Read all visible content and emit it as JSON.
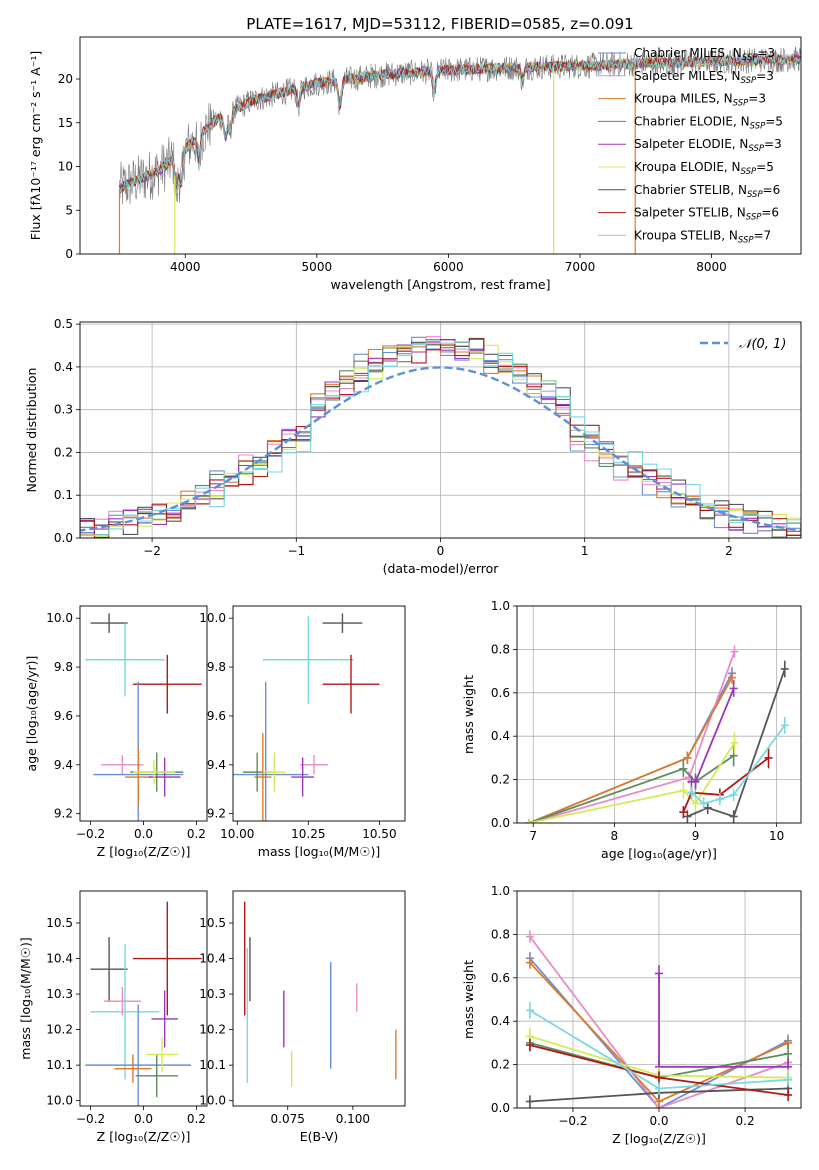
{
  "figure": {
    "title": "PLATE=1617, MJD=53112, FIBERID=0585, z=0.091"
  },
  "models": [
    {
      "name": "Chabrier MILES",
      "nssp": "3",
      "color": "#6a8fd9"
    },
    {
      "name": "Salpeter MILES",
      "nssp": "3",
      "color": "#e88cc8"
    },
    {
      "name": "Kroupa MILES",
      "nssp": "3",
      "color": "#e07a2a"
    },
    {
      "name": "Chabrier ELODIE",
      "nssp": "5",
      "color": "#5f8a5f"
    },
    {
      "name": "Salpeter ELODIE",
      "nssp": "3",
      "color": "#9b37b8"
    },
    {
      "name": "Kroupa ELODIE",
      "nssp": "5",
      "color": "#d4ea5a"
    },
    {
      "name": "Chabrier STELIB",
      "nssp": "6",
      "color": "#555555"
    },
    {
      "name": "Salpeter STELIB",
      "nssp": "6",
      "color": "#b01818"
    },
    {
      "name": "Kroupa STELIB",
      "nssp": "7",
      "color": "#7ad8e0"
    }
  ],
  "chart_data": [
    {
      "id": "spectrum",
      "type": "line",
      "xlabel": "wavelength [Angstrom, rest frame]",
      "ylabel": "Flux [fλ10⁻¹⁷ erg cm⁻² s⁻¹ A⁻¹]",
      "xlim": [
        3200,
        8680
      ],
      "ylim": [
        0,
        24.8
      ],
      "xticks": [
        4000,
        5000,
        6000,
        7000,
        8000
      ],
      "yticks": [
        0,
        5,
        10,
        15,
        20
      ],
      "legend": "upper right",
      "continuum": {
        "x": [
          3500,
          3800,
          4000,
          4200,
          4500,
          5000,
          5500,
          6000,
          6500,
          7000,
          7500,
          8000,
          8500,
          8680
        ],
        "y": [
          7.5,
          9.5,
          12,
          15,
          17.5,
          19.5,
          20.5,
          21,
          21.3,
          21.5,
          21.8,
          22,
          22.2,
          22.3
        ]
      },
      "absorption_features": [
        {
          "x": 3934,
          "depth": 4
        },
        {
          "x": 3969,
          "depth": 3.5
        },
        {
          "x": 4102,
          "depth": 3
        },
        {
          "x": 4305,
          "depth": 2.5
        },
        {
          "x": 4341,
          "depth": 2
        },
        {
          "x": 4861,
          "depth": 2
        },
        {
          "x": 5175,
          "depth": 3
        },
        {
          "x": 5892,
          "depth": 2.5
        },
        {
          "x": 6563,
          "depth": 1.5
        }
      ],
      "spikes": [
        {
          "x": 3500,
          "series": "Kroupa MILES"
        },
        {
          "x": 3920,
          "series": "Kroupa ELODIE"
        },
        {
          "x": 6800,
          "series": "Kroupa ELODIE"
        },
        {
          "x": 7420,
          "series": "Kroupa MILES"
        }
      ]
    },
    {
      "id": "residual_histogram",
      "type": "histogram",
      "xlabel": "(data-model)/error",
      "ylabel": "Normed distribution",
      "xlim": [
        -2.5,
        2.5
      ],
      "ylim": [
        0,
        0.505
      ],
      "xticks": [
        -2,
        -1,
        0,
        1,
        2
      ],
      "yticks": [
        0.0,
        0.1,
        0.2,
        0.3,
        0.4,
        0.5
      ],
      "reference_label": "𝒩(0, 1)",
      "reference_color": "#5b8fd9",
      "bin_width": 0.1,
      "legend": "upper right"
    },
    {
      "id": "age_vs_metallicity",
      "type": "errorbar",
      "xlabel": "Z [log₁₀(Z/Z☉)]",
      "ylabel": "age  [log₁₀(age/yr)]",
      "xlim": [
        -0.24,
        0.24
      ],
      "ylim": [
        9.17,
        10.05
      ],
      "xticks": [
        -0.2,
        0.0,
        0.2
      ],
      "yticks": [
        9.2,
        9.4,
        9.6,
        9.8,
        10.0
      ],
      "points": [
        {
          "x": -0.13,
          "y": 9.98,
          "xerr": 0.07,
          "yerr": 0.04,
          "model": "Chabrier STELIB"
        },
        {
          "x": -0.07,
          "y": 9.83,
          "xerr": 0.15,
          "yerr": 0.15,
          "model": "Kroupa STELIB"
        },
        {
          "x": 0.09,
          "y": 9.73,
          "xerr": 0.13,
          "yerr": 0.12,
          "model": "Salpeter STELIB"
        },
        {
          "x": -0.08,
          "y": 9.4,
          "xerr": 0.08,
          "yerr": 0.04,
          "model": "Salpeter MILES"
        },
        {
          "x": -0.02,
          "y": 9.36,
          "xerr": 0.17,
          "yerr": 0.38,
          "model": "Chabrier MILES"
        },
        {
          "x": -0.02,
          "y": 9.35,
          "xerr": 0.05,
          "yerr": 0.12,
          "model": "Kroupa MILES"
        },
        {
          "x": 0.05,
          "y": 9.37,
          "xerr": 0.1,
          "yerr": 0.08,
          "model": "Chabrier ELODIE"
        },
        {
          "x": 0.08,
          "y": 9.35,
          "xerr": 0.06,
          "yerr": 0.08,
          "model": "Salpeter ELODIE"
        },
        {
          "x": 0.04,
          "y": 9.37,
          "xerr": 0.08,
          "yerr": 0.05,
          "model": "Kroupa ELODIE"
        }
      ]
    },
    {
      "id": "age_vs_mass",
      "type": "errorbar",
      "xlabel": "mass [log₁₀(M/M☉)]",
      "ylabel": "",
      "xlim": [
        9.985,
        10.59
      ],
      "ylim": [
        9.17,
        10.05
      ],
      "xticks": [
        10.0,
        10.25,
        10.5
      ],
      "xticklabels": [
        "10.00",
        "10.25",
        "10.50"
      ],
      "yticks": [
        9.2,
        9.4,
        9.6,
        9.8,
        10.0
      ],
      "points": [
        {
          "x": 10.37,
          "y": 9.98,
          "xerr": 0.07,
          "yerr": 0.04,
          "model": "Chabrier STELIB"
        },
        {
          "x": 10.25,
          "y": 9.83,
          "xerr": 0.16,
          "yerr": 0.18,
          "model": "Kroupa STELIB"
        },
        {
          "x": 10.4,
          "y": 9.73,
          "xerr": 0.1,
          "yerr": 0.12,
          "model": "Salpeter STELIB"
        },
        {
          "x": 10.27,
          "y": 9.4,
          "xerr": 0.05,
          "yerr": 0.04,
          "model": "Salpeter MILES"
        },
        {
          "x": 10.1,
          "y": 9.36,
          "xerr": 0.15,
          "yerr": 0.38,
          "model": "Chabrier MILES"
        },
        {
          "x": 10.09,
          "y": 9.35,
          "xerr": 0.03,
          "yerr": 0.18,
          "model": "Kroupa MILES"
        },
        {
          "x": 10.07,
          "y": 9.37,
          "xerr": 0.05,
          "yerr": 0.08,
          "model": "Chabrier ELODIE"
        },
        {
          "x": 10.23,
          "y": 9.35,
          "xerr": 0.04,
          "yerr": 0.08,
          "model": "Salpeter ELODIE"
        },
        {
          "x": 10.13,
          "y": 9.37,
          "xerr": 0.04,
          "yerr": 0.08,
          "model": "Kroupa ELODIE"
        }
      ]
    },
    {
      "id": "mass_weight_vs_age",
      "type": "line",
      "xlabel": "age  [log₁₀(age/yr)]",
      "ylabel": "mass weight",
      "xlim": [
        6.8,
        10.3
      ],
      "ylim": [
        0,
        1.0
      ],
      "xticks": [
        7,
        8,
        9,
        10
      ],
      "yticks": [
        0.0,
        0.2,
        0.4,
        0.6,
        0.8,
        1.0
      ],
      "series": [
        {
          "model": "Chabrier MILES",
          "x": [
            6.95,
            8.9,
            9.45
          ],
          "y": [
            0.0,
            0.3,
            0.69
          ],
          "yerr": [
            0,
            0.01,
            0.01
          ]
        },
        {
          "model": "Salpeter MILES",
          "x": [
            6.95,
            8.92,
            9.48
          ],
          "y": [
            0.0,
            0.21,
            0.79
          ],
          "yerr": [
            0,
            0.01,
            0.01
          ]
        },
        {
          "model": "Kroupa MILES",
          "x": [
            6.95,
            8.9,
            9.45
          ],
          "y": [
            0.0,
            0.3,
            0.67
          ],
          "yerr": [
            0,
            0.01,
            0.01
          ]
        },
        {
          "model": "Chabrier ELODIE",
          "x": [
            6.95,
            8.85,
            9.0,
            9.47
          ],
          "y": [
            0.0,
            0.25,
            0.19,
            0.31
          ],
          "yerr": [
            0,
            0.02,
            0.02,
            0.03
          ]
        },
        {
          "model": "Salpeter ELODIE",
          "x": [
            8.95,
            9.0,
            9.47
          ],
          "y": [
            0.19,
            0.19,
            0.62
          ],
          "yerr": [
            0.01,
            0.01,
            0.02
          ]
        },
        {
          "model": "Kroupa ELODIE",
          "x": [
            6.95,
            8.85,
            9.0,
            9.48
          ],
          "y": [
            0.0,
            0.15,
            0.09,
            0.37
          ],
          "yerr": [
            0,
            0.02,
            0.02,
            0.03
          ]
        },
        {
          "model": "Chabrier STELIB",
          "x": [
            8.9,
            9.15,
            9.47,
            10.1
          ],
          "y": [
            0.03,
            0.07,
            0.03,
            0.71
          ],
          "yerr": [
            0.01,
            0.01,
            0.01,
            0.02
          ]
        },
        {
          "model": "Salpeter STELIB",
          "x": [
            8.85,
            8.95,
            9.3,
            9.9
          ],
          "y": [
            0.05,
            0.14,
            0.13,
            0.3
          ],
          "yerr": [
            0.01,
            0.01,
            0.01,
            0.03
          ]
        },
        {
          "model": "Kroupa STELIB",
          "x": [
            8.95,
            9.1,
            9.3,
            9.47,
            10.1
          ],
          "y": [
            0.14,
            0.09,
            0.11,
            0.13,
            0.45
          ],
          "yerr": [
            0.01,
            0.01,
            0.01,
            0.01,
            0.02
          ]
        }
      ]
    },
    {
      "id": "mass_vs_metallicity",
      "type": "errorbar",
      "xlabel": "Z [log₁₀(Z/Z☉)]",
      "ylabel": "mass [log₁₀(M/M☉)]",
      "xlim": [
        -0.24,
        0.24
      ],
      "ylim": [
        9.985,
        10.59
      ],
      "xticks": [
        -0.2,
        0.0,
        0.2
      ],
      "yticks": [
        10.0,
        10.1,
        10.2,
        10.3,
        10.4,
        10.5
      ],
      "points": [
        {
          "x": -0.13,
          "y": 10.37,
          "xerr": 0.07,
          "yerr": 0.09,
          "model": "Chabrier STELIB"
        },
        {
          "x": -0.07,
          "y": 10.25,
          "xerr": 0.13,
          "yerr": 0.19,
          "model": "Kroupa STELIB"
        },
        {
          "x": 0.09,
          "y": 10.4,
          "xerr": 0.13,
          "yerr": 0.16,
          "model": "Salpeter STELIB"
        },
        {
          "x": -0.08,
          "y": 10.28,
          "xerr": 0.07,
          "yerr": 0.04,
          "model": "Salpeter MILES"
        },
        {
          "x": -0.02,
          "y": 10.1,
          "xerr": 0.2,
          "yerr": 0.17,
          "model": "Chabrier MILES"
        },
        {
          "x": -0.04,
          "y": 10.09,
          "xerr": 0.07,
          "yerr": 0.04,
          "model": "Kroupa MILES"
        },
        {
          "x": 0.05,
          "y": 10.07,
          "xerr": 0.08,
          "yerr": 0.06,
          "model": "Chabrier ELODIE"
        },
        {
          "x": 0.08,
          "y": 10.23,
          "xerr": 0.05,
          "yerr": 0.08,
          "model": "Salpeter ELODIE"
        },
        {
          "x": 0.07,
          "y": 10.13,
          "xerr": 0.06,
          "yerr": 0.05,
          "model": "Kroupa ELODIE"
        }
      ]
    },
    {
      "id": "mass_vs_ebv",
      "type": "errorbar",
      "xlabel": "E(B-V)",
      "ylabel": "",
      "xlim": [
        0.054,
        0.12
      ],
      "ylim": [
        9.985,
        10.59
      ],
      "xticks": [
        0.075,
        0.1
      ],
      "xticklabels": [
        "0.075",
        "0.100"
      ],
      "yticks": [
        10.0,
        10.1,
        10.2,
        10.3,
        10.4,
        10.5
      ],
      "points": [
        {
          "x": 0.0585,
          "y": 10.4,
          "xerr": 0,
          "yerr": 0.16,
          "model": "Salpeter STELIB"
        },
        {
          "x": 0.0595,
          "y": 10.24,
          "xerr": 0,
          "yerr": 0.19,
          "model": "Kroupa STELIB"
        },
        {
          "x": 0.0605,
          "y": 10.37,
          "xerr": 0,
          "yerr": 0.09,
          "model": "Chabrier STELIB"
        },
        {
          "x": 0.0735,
          "y": 10.23,
          "xerr": 0,
          "yerr": 0.08,
          "model": "Salpeter ELODIE"
        },
        {
          "x": 0.0765,
          "y": 10.09,
          "xerr": 0,
          "yerr": 0.05,
          "model": "Kroupa ELODIE"
        },
        {
          "x": 0.0915,
          "y": 10.24,
          "xerr": 0,
          "yerr": 0.15,
          "model": "Chabrier MILES"
        },
        {
          "x": 0.1015,
          "y": 10.29,
          "xerr": 0,
          "yerr": 0.04,
          "model": "Salpeter MILES"
        },
        {
          "x": 0.1165,
          "y": 10.13,
          "xerr": 0,
          "yerr": 0.07,
          "model": "Kroupa MILES"
        }
      ]
    },
    {
      "id": "mass_weight_vs_metallicity",
      "type": "line",
      "xlabel": "Z [log₁₀(Z/Z☉)]",
      "ylabel": "mass weight",
      "xlim": [
        -0.33,
        0.33
      ],
      "ylim": [
        0,
        1.0
      ],
      "xticks": [
        -0.2,
        0.0,
        0.2
      ],
      "yticks": [
        0.0,
        0.2,
        0.4,
        0.6,
        0.8,
        1.0
      ],
      "series": [
        {
          "model": "Chabrier MILES",
          "x": [
            -0.3,
            0.0,
            0.3
          ],
          "y": [
            0.69,
            0.0,
            0.31
          ],
          "yerr": [
            0.01,
            0.01,
            0.01
          ]
        },
        {
          "model": "Salpeter MILES",
          "x": [
            -0.3,
            0.0,
            0.3
          ],
          "y": [
            0.79,
            0.0,
            0.21
          ],
          "yerr": [
            0.01,
            0.01,
            0.01
          ]
        },
        {
          "model": "Kroupa MILES",
          "x": [
            -0.3,
            0.0,
            0.3
          ],
          "y": [
            0.67,
            0.03,
            0.3
          ],
          "yerr": [
            0.01,
            0.01,
            0.01
          ]
        },
        {
          "model": "Chabrier ELODIE",
          "x": [
            -0.3,
            0.0,
            0.3
          ],
          "y": [
            0.3,
            0.14,
            0.25
          ],
          "yerr": [
            0.02,
            0.02,
            0.03
          ]
        },
        {
          "model": "Salpeter ELODIE",
          "x": [
            0.0,
            0.0,
            0.3
          ],
          "y": [
            0.62,
            0.19,
            0.19
          ],
          "yerr": [
            0.02,
            0.02,
            0.02
          ]
        },
        {
          "model": "Kroupa ELODIE",
          "x": [
            -0.3,
            0.0,
            0.3
          ],
          "y": [
            0.33,
            0.15,
            0.14
          ],
          "yerr": [
            0.02,
            0.02,
            0.02
          ]
        },
        {
          "model": "Chabrier STELIB",
          "x": [
            -0.3,
            0.0,
            0.3
          ],
          "y": [
            0.03,
            0.07,
            0.09
          ],
          "yerr": [
            0.01,
            0.01,
            0.01
          ]
        },
        {
          "model": "Salpeter STELIB",
          "x": [
            -0.3,
            0.0,
            0.3
          ],
          "y": [
            0.29,
            0.14,
            0.06
          ],
          "yerr": [
            0.01,
            0.01,
            0.01
          ]
        },
        {
          "model": "Kroupa STELIB",
          "x": [
            -0.3,
            0.0,
            0.3
          ],
          "y": [
            0.45,
            0.09,
            0.13
          ],
          "yerr": [
            0.02,
            0.01,
            0.01
          ]
        }
      ]
    }
  ]
}
